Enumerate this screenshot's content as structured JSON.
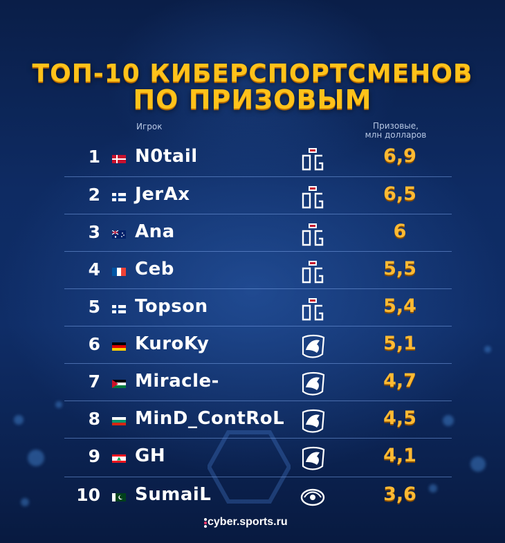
{
  "title": {
    "line1": "ТОП-10 КИБЕРСПОРТСМЕНОВ",
    "line2": "ПО ПРИЗОВЫМ"
  },
  "headers": {
    "player": "Игрок",
    "prize_line1": "Призовые,",
    "prize_line2": "млн долларов"
  },
  "brand": "cyber.sports.ru",
  "colors": {
    "title": "#ffc21a",
    "prize": "#ffba33",
    "background": "#0e2b63"
  },
  "chart_data": {
    "type": "table",
    "title": "ТОП-10 КИБЕРСПОРТСМЕНОВ ПО ПРИЗОВЫМ",
    "columns": [
      "rank",
      "flag",
      "player",
      "team",
      "prize"
    ],
    "rows": [
      {
        "rank": "1",
        "flag": "denmark-flag",
        "player": "N0tail",
        "team": "og-logo",
        "prize": "6,9"
      },
      {
        "rank": "2",
        "flag": "finland-flag",
        "player": "JerAx",
        "team": "og-logo",
        "prize": "6,5"
      },
      {
        "rank": "3",
        "flag": "australia-flag",
        "player": "Ana",
        "team": "og-logo",
        "prize": "6"
      },
      {
        "rank": "4",
        "flag": "france-flag",
        "player": "Ceb",
        "team": "og-logo",
        "prize": "5,5"
      },
      {
        "rank": "5",
        "flag": "finland-flag",
        "player": "Topson",
        "team": "og-logo",
        "prize": "5,4"
      },
      {
        "rank": "6",
        "flag": "germany-flag",
        "player": "KuroKy",
        "team": "liquid-logo",
        "prize": "5,1"
      },
      {
        "rank": "7",
        "flag": "jordan-flag",
        "player": "Miracle-",
        "team": "liquid-logo",
        "prize": "4,7"
      },
      {
        "rank": "8",
        "flag": "bulgaria-flag",
        "player": "MinD_ContRoL",
        "team": "liquid-logo",
        "prize": "4,5"
      },
      {
        "rank": "9",
        "flag": "lebanon-flag",
        "player": "GH",
        "team": "liquid-logo",
        "prize": "4,1"
      },
      {
        "rank": "10",
        "flag": "pakistan-flag",
        "player": "SumaiL",
        "team": "eg-logo",
        "prize": "3,6"
      }
    ]
  }
}
